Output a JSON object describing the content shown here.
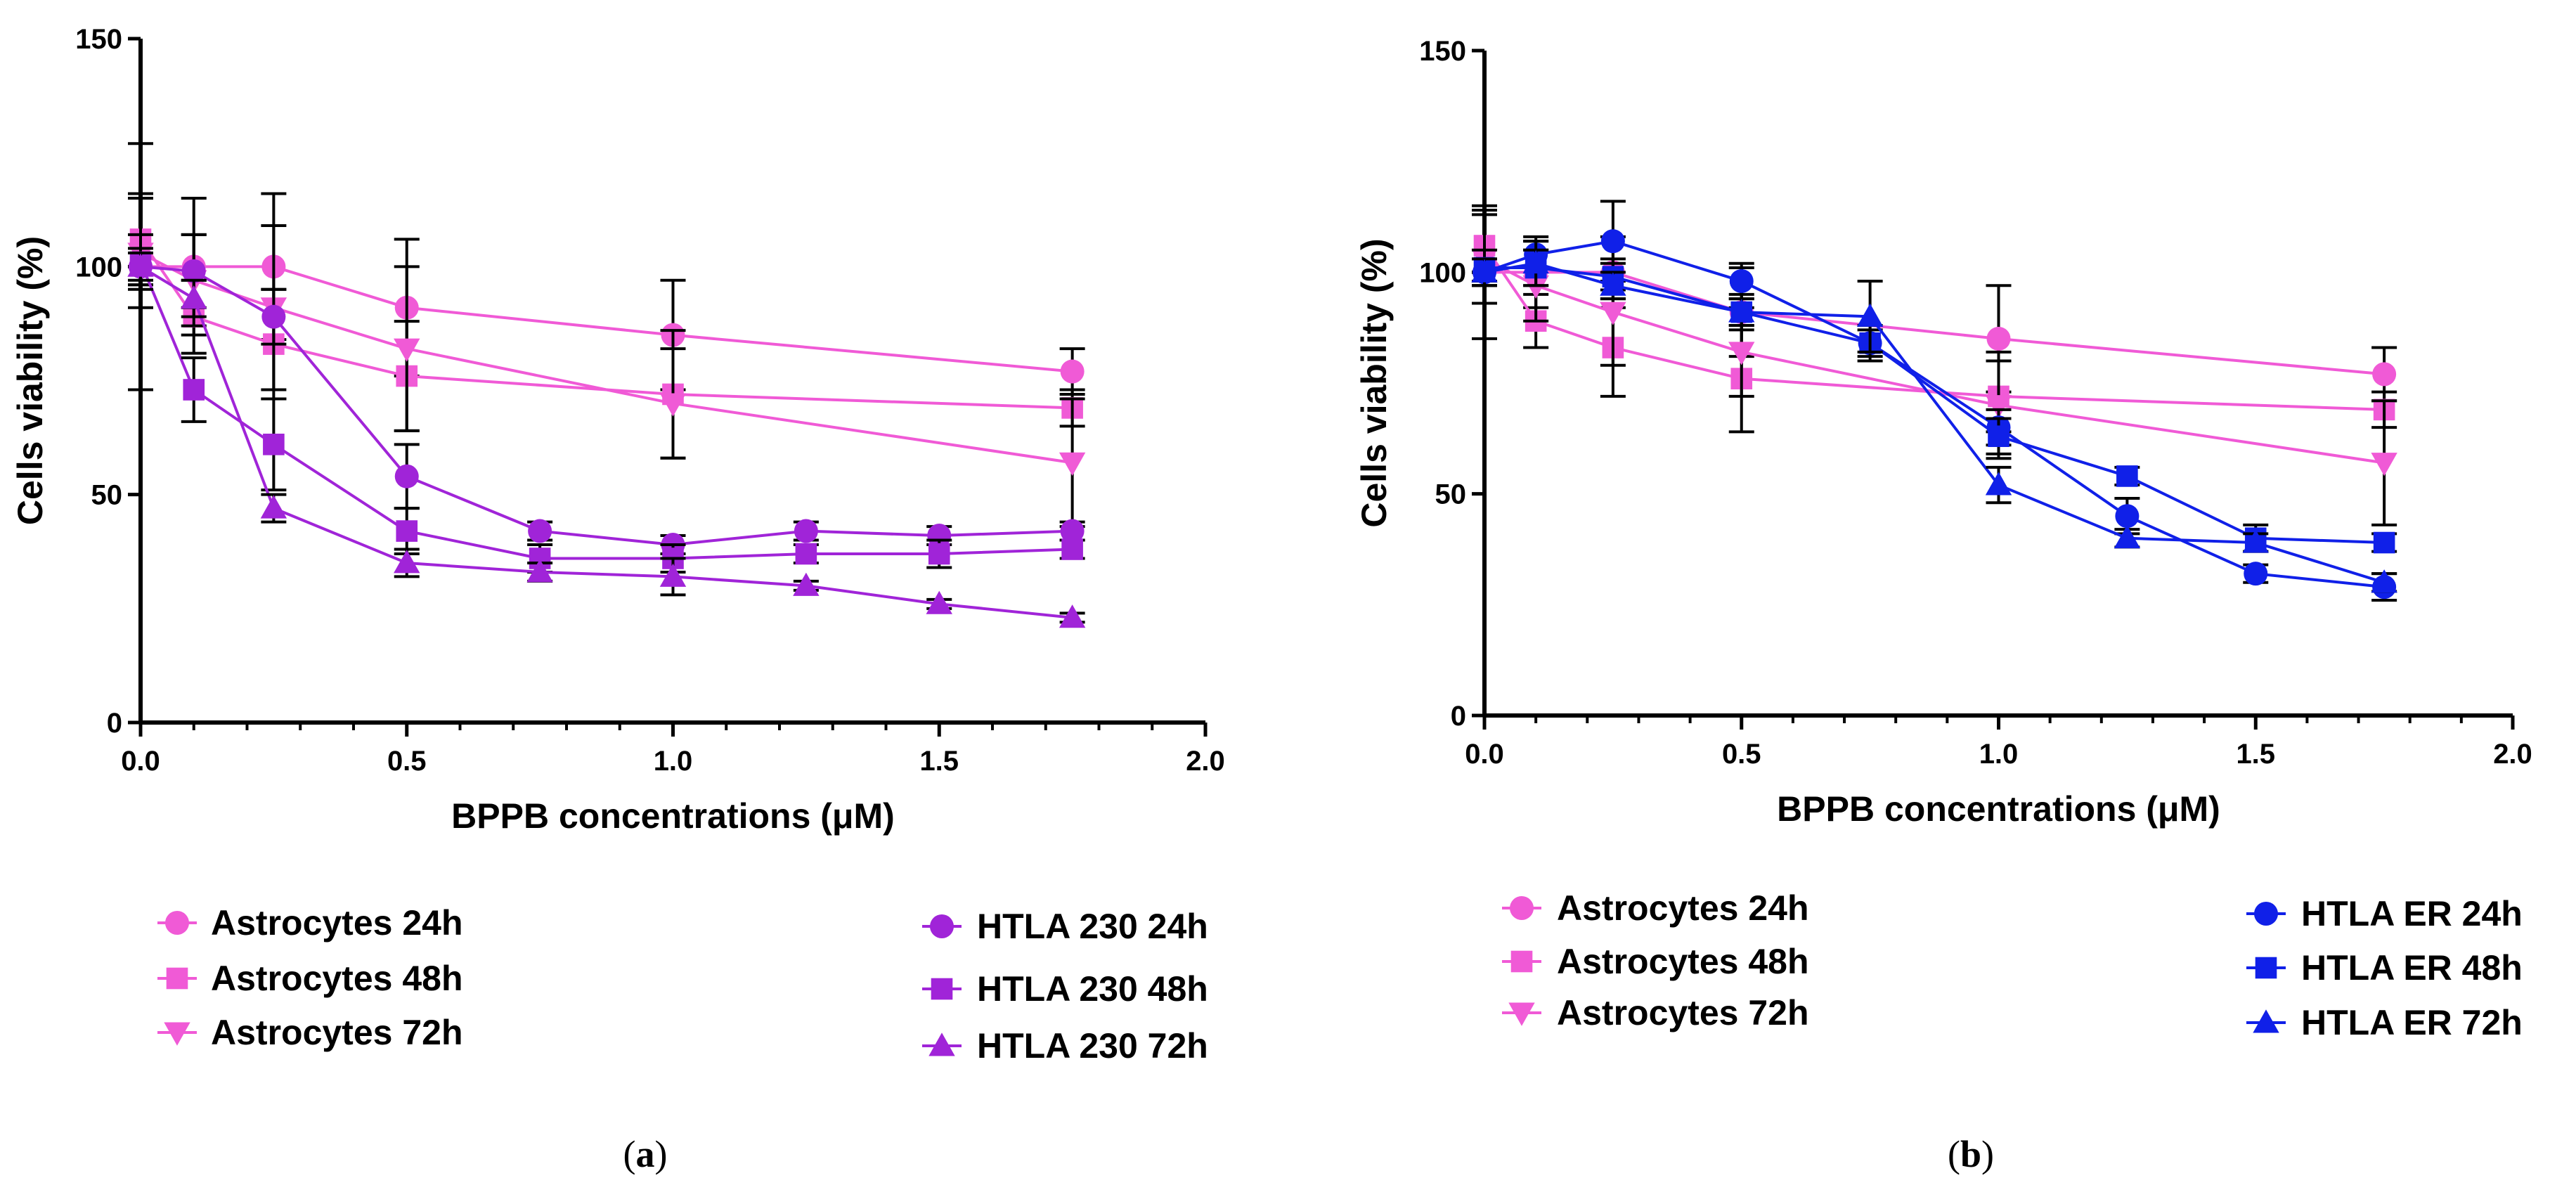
{
  "chart_data": [
    {
      "type": "line",
      "panel": "a",
      "panel_label": "a",
      "title": "",
      "xlabel": "BPPB concentrations (μM)",
      "ylabel": "Cells viability (%)",
      "xlim": [
        0,
        2.0
      ],
      "ylim": [
        0,
        150
      ],
      "x_ticks": [
        "0.0",
        "0.5",
        "1.0",
        "1.5",
        "2.0"
      ],
      "y_ticks": [
        "0",
        "50",
        "100",
        "150"
      ],
      "x_tick_values": [
        0,
        0.5,
        1.0,
        1.5,
        2.0
      ],
      "y_tick_values": [
        0,
        50,
        100,
        150
      ],
      "grid": false,
      "legend_position": "bottom",
      "series": [
        {
          "name": "Astrocytes 24h",
          "color": "#f05ad6",
          "marker": "circle",
          "x": [
            0,
            0.1,
            0.25,
            0.5,
            1.0,
            1.75
          ],
          "values": [
            100,
            100,
            100,
            91,
            85,
            77
          ],
          "errors": [
            27,
            15,
            16,
            15,
            12,
            5
          ]
        },
        {
          "name": "Astrocytes 48h",
          "color": "#f05ad6",
          "marker": "square",
          "x": [
            0,
            0.1,
            0.25,
            0.5,
            1.0,
            1.75
          ],
          "values": [
            106,
            89,
            83,
            76,
            72,
            69
          ],
          "errors": [
            10,
            8,
            12,
            12,
            14,
            4
          ]
        },
        {
          "name": "Astrocytes 72h",
          "color": "#f05ad6",
          "marker": "triangle-down",
          "x": [
            0,
            0.1,
            0.25,
            0.5,
            1.0,
            1.75
          ],
          "values": [
            103,
            97,
            91,
            82,
            70,
            57
          ],
          "errors": [
            12,
            10,
            18,
            18,
            12,
            14
          ]
        },
        {
          "name": "HTLA 230 24h",
          "color": "#a024d8",
          "marker": "circle",
          "x": [
            0,
            0.1,
            0.25,
            0.5,
            0.75,
            1.0,
            1.25,
            1.5,
            1.75
          ],
          "values": [
            100,
            99,
            89,
            54,
            42,
            39,
            42,
            41,
            42
          ],
          "errors": [
            4,
            8,
            6,
            7,
            2,
            2,
            2,
            2,
            2
          ]
        },
        {
          "name": "HTLA 230 48h",
          "color": "#a024d8",
          "marker": "square",
          "x": [
            0,
            0.1,
            0.25,
            0.5,
            0.75,
            1.0,
            1.25,
            1.5,
            1.75
          ],
          "values": [
            101,
            73,
            61,
            42,
            36,
            36,
            37,
            37,
            38
          ],
          "errors": [
            6,
            7,
            10,
            5,
            3,
            3,
            2,
            3,
            2
          ]
        },
        {
          "name": "HTLA 230 72h",
          "color": "#a024d8",
          "marker": "triangle-up",
          "x": [
            0,
            0.1,
            0.25,
            0.5,
            0.75,
            1.0,
            1.25,
            1.5,
            1.75
          ],
          "values": [
            100,
            93,
            47,
            35,
            33,
            32,
            30,
            26,
            23
          ],
          "errors": [
            3,
            4,
            3,
            3,
            2,
            4,
            1,
            1,
            1
          ]
        }
      ],
      "legend_columns": [
        [
          "Astrocytes 24h",
          "Astrocytes 48h",
          "Astrocytes 72h"
        ],
        [
          "HTLA 230 24h",
          "HTLA 230 48h",
          "HTLA 230 72h"
        ]
      ]
    },
    {
      "type": "line",
      "panel": "b",
      "panel_label": "b",
      "title": "",
      "xlabel": "BPPB concentrations (μM)",
      "ylabel": "Cells viability (%)",
      "xlim": [
        0,
        2.0
      ],
      "ylim": [
        0,
        150
      ],
      "x_ticks": [
        "0.0",
        "0.5",
        "1.0",
        "1.5",
        "2.0"
      ],
      "y_ticks": [
        "0",
        "50",
        "100",
        "150"
      ],
      "x_tick_values": [
        0,
        0.5,
        1.0,
        1.5,
        2.0
      ],
      "y_tick_values": [
        0,
        50,
        100,
        150
      ],
      "grid": false,
      "legend_position": "bottom",
      "series": [
        {
          "name": "Astrocytes 24h",
          "color": "#f05ad6",
          "marker": "circle",
          "x": [
            0,
            0.1,
            0.25,
            0.5,
            1.0,
            1.75
          ],
          "values": [
            100,
            100,
            100,
            91,
            85,
            77
          ],
          "errors": [
            15,
            8,
            8,
            10,
            12,
            6
          ]
        },
        {
          "name": "Astrocytes 48h",
          "color": "#f05ad6",
          "marker": "square",
          "x": [
            0,
            0.1,
            0.25,
            0.5,
            1.0,
            1.75
          ],
          "values": [
            106,
            89,
            83,
            76,
            72,
            69
          ],
          "errors": [
            8,
            6,
            11,
            12,
            8,
            4
          ]
        },
        {
          "name": "Astrocytes 72h",
          "color": "#f05ad6",
          "marker": "triangle-down",
          "x": [
            0,
            0.1,
            0.25,
            0.5,
            1.0,
            1.75
          ],
          "values": [
            103,
            97,
            91,
            82,
            70,
            57
          ],
          "errors": [
            10,
            8,
            12,
            10,
            12,
            14
          ]
        },
        {
          "name": "HTLA ER 24h",
          "color": "#1020e8",
          "marker": "circle",
          "x": [
            0,
            0.1,
            0.25,
            0.5,
            0.75,
            1.0,
            1.25,
            1.5,
            1.75
          ],
          "values": [
            100,
            104,
            107,
            98,
            84,
            65,
            45,
            32,
            29
          ],
          "errors": [
            3,
            3,
            9,
            4,
            4,
            4,
            4,
            2,
            3
          ]
        },
        {
          "name": "HTLA ER 48h",
          "color": "#1020e8",
          "marker": "square",
          "x": [
            0,
            0.1,
            0.25,
            0.5,
            0.75,
            1.0,
            1.25,
            1.5,
            1.75
          ],
          "values": [
            101,
            101,
            99,
            91,
            84,
            63,
            54,
            40,
            39
          ],
          "errors": [
            4,
            4,
            3,
            4,
            3,
            4,
            2,
            3,
            2
          ]
        },
        {
          "name": "HTLA ER 72h",
          "color": "#1020e8",
          "marker": "triangle-up",
          "x": [
            0,
            0.1,
            0.25,
            0.5,
            0.75,
            1.0,
            1.25,
            1.5,
            1.75
          ],
          "values": [
            100,
            102,
            97,
            91,
            90,
            52,
            40,
            39,
            30
          ],
          "errors": [
            3,
            5,
            3,
            3,
            8,
            4,
            2,
            2,
            2
          ]
        }
      ],
      "legend_columns": [
        [
          "Astrocytes 24h",
          "Astrocytes 48h",
          "Astrocytes 72h"
        ],
        [
          "HTLA ER 24h",
          "HTLA ER 48h",
          "HTLA ER 72h"
        ]
      ]
    }
  ]
}
